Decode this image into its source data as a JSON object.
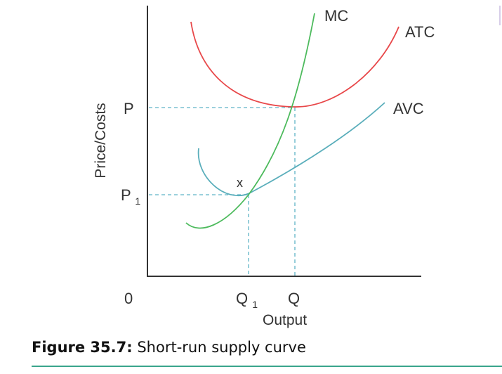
{
  "figure": {
    "caption_label": "Figure 35.7:",
    "caption_text": "Short-run supply curve"
  },
  "axes": {
    "y_label": "Price/Costs",
    "x_label": "Output",
    "origin_label": "0"
  },
  "prices": {
    "p": "P",
    "p1_main": "P",
    "p1_sub": "1"
  },
  "quantities": {
    "q1_main": "Q",
    "q1_sub": "1",
    "q": "Q"
  },
  "curves": {
    "mc": "MC",
    "atc": "ATC",
    "avc": "AVC",
    "point_x": "x"
  },
  "colors": {
    "mc": "#4cba5c",
    "atc": "#e8484a",
    "avc": "#5aaebb",
    "guides": "#5fb3c6",
    "axis": "#333333",
    "caption_rule": "#3aa58c"
  }
}
